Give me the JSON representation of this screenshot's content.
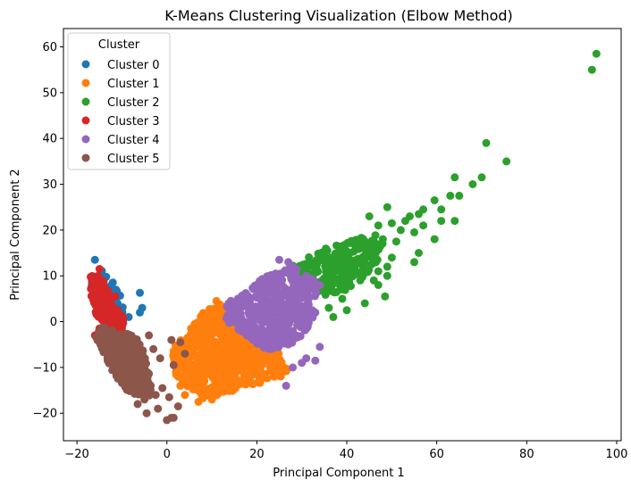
{
  "chart_data": {
    "type": "scatter",
    "title": "K-Means Clustering Visualization (Elbow Method)",
    "xlabel": "Principal Component 1",
    "ylabel": "Principal Component 2",
    "xlim": [
      -23,
      101
    ],
    "ylim": [
      -26,
      64
    ],
    "xticks": [
      -20,
      0,
      20,
      40,
      60,
      80,
      100
    ],
    "yticks": [
      -20,
      -10,
      0,
      10,
      20,
      30,
      40,
      50,
      60
    ],
    "grid": false,
    "legend": {
      "title": "Cluster",
      "location": "top-left"
    },
    "series": [
      {
        "name": "Cluster 0",
        "color": "#1f77b4",
        "cloud": {
          "count": 60,
          "seed": 11,
          "polygon": [
            [
              -17,
              13
            ],
            [
              -13,
              11
            ],
            [
              -10,
              5
            ],
            [
              -8,
              3
            ],
            [
              -11,
              -2
            ],
            [
              -14,
              0
            ],
            [
              -17,
              6
            ]
          ]
        },
        "points": [
          [
            -16,
            13.5
          ],
          [
            -13.5,
            9.8
          ],
          [
            -12.5,
            6.5
          ],
          [
            -11,
            3.8
          ],
          [
            -6,
            6.3
          ],
          [
            -5.5,
            3
          ],
          [
            -6,
            2
          ],
          [
            -8.5,
            1
          ],
          [
            -10,
            -1
          ]
        ]
      },
      {
        "name": "Cluster 1",
        "color": "#ff7f0e",
        "cloud": {
          "count": 650,
          "seed": 22,
          "polygon": [
            [
              4,
              -3
            ],
            [
              8,
              2
            ],
            [
              12,
              4
            ],
            [
              15,
              2
            ],
            [
              19,
              -3
            ],
            [
              25,
              -7
            ],
            [
              27,
              -11
            ],
            [
              24,
              -13
            ],
            [
              18,
              -14
            ],
            [
              12,
              -16
            ],
            [
              8,
              -17
            ],
            [
              2,
              -12
            ],
            [
              1,
              -6
            ]
          ]
        },
        "points": [
          [
            2,
            -11
          ],
          [
            3,
            -14
          ],
          [
            4,
            -16
          ],
          [
            7,
            -17.5
          ],
          [
            10,
            -17
          ],
          [
            12,
            3.5
          ],
          [
            11,
            4.5
          ],
          [
            20,
            -10
          ],
          [
            23,
            -9
          ],
          [
            26,
            -10
          ],
          [
            18,
            -13
          ],
          [
            14,
            -14
          ]
        ]
      },
      {
        "name": "Cluster 2",
        "color": "#2ca02c",
        "cloud": {
          "count": 240,
          "seed": 33,
          "polygon": [
            [
              27,
              12
            ],
            [
              35,
              16
            ],
            [
              42,
              18
            ],
            [
              48,
              20
            ],
            [
              48,
              14
            ],
            [
              44,
              10
            ],
            [
              40,
              7
            ],
            [
              36,
              5
            ],
            [
              31,
              8
            ]
          ]
        },
        "points": [
          [
            95.5,
            58.5
          ],
          [
            94.5,
            55
          ],
          [
            71,
            39
          ],
          [
            75.5,
            35
          ],
          [
            70,
            31.5
          ],
          [
            64,
            31.5
          ],
          [
            68,
            30
          ],
          [
            63,
            27.5
          ],
          [
            65,
            27.5
          ],
          [
            59.5,
            26.5
          ],
          [
            61,
            24.5
          ],
          [
            57,
            24.5
          ],
          [
            56,
            23.5
          ],
          [
            54,
            23
          ],
          [
            49,
            25
          ],
          [
            50,
            21.5
          ],
          [
            53,
            22
          ],
          [
            61,
            22
          ],
          [
            64,
            22
          ],
          [
            57,
            21
          ],
          [
            59.5,
            18
          ],
          [
            55,
            19.5
          ],
          [
            52,
            20
          ],
          [
            45,
            23
          ],
          [
            47,
            21
          ],
          [
            48,
            18
          ],
          [
            45,
            17
          ],
          [
            51,
            17.5
          ],
          [
            56,
            15
          ],
          [
            55,
            13
          ],
          [
            50,
            14
          ],
          [
            49,
            12
          ],
          [
            47,
            11
          ],
          [
            46,
            9
          ],
          [
            49,
            10
          ],
          [
            47,
            8
          ],
          [
            48.5,
            5.5
          ],
          [
            44,
            4
          ],
          [
            43,
            9
          ],
          [
            39,
            5
          ],
          [
            36,
            3
          ],
          [
            40,
            2.5
          ],
          [
            37,
            1
          ],
          [
            39.5,
            12
          ]
        ]
      },
      {
        "name": "Cluster 3",
        "color": "#d62728",
        "cloud": {
          "count": 230,
          "seed": 44,
          "polygon": [
            [
              -17,
              11
            ],
            [
              -14,
              9
            ],
            [
              -12,
              4
            ],
            [
              -9.5,
              1
            ],
            [
              -10,
              -2
            ],
            [
              -13,
              -2
            ],
            [
              -16,
              2
            ],
            [
              -17,
              6
            ]
          ]
        },
        "points": [
          [
            -11.5,
            5.5
          ],
          [
            -15,
            11.5
          ],
          [
            -16,
            -3
          ],
          [
            -15,
            -1.5
          ],
          [
            -13,
            -2.5
          ],
          [
            -10,
            -1.5
          ]
        ]
      },
      {
        "name": "Cluster 4",
        "color": "#9467bd",
        "cloud": {
          "count": 500,
          "seed": 55,
          "polygon": [
            [
              13,
              4
            ],
            [
              17,
              6
            ],
            [
              22,
              10
            ],
            [
              28,
              12
            ],
            [
              33,
              9
            ],
            [
              34,
              4
            ],
            [
              31,
              -2
            ],
            [
              27,
              -6
            ],
            [
              22,
              -6
            ],
            [
              17,
              -3
            ],
            [
              13,
              0
            ]
          ]
        },
        "points": [
          [
            25,
            13.5
          ],
          [
            27,
            13
          ],
          [
            31,
            10
          ],
          [
            34,
            8
          ],
          [
            33,
            2
          ],
          [
            34,
            -5.5
          ],
          [
            33,
            -8.5
          ],
          [
            31,
            -8
          ],
          [
            30,
            -9
          ],
          [
            28,
            -10
          ],
          [
            26.5,
            -14
          ]
        ]
      },
      {
        "name": "Cluster 5",
        "color": "#8c564b",
        "cloud": {
          "count": 360,
          "seed": 66,
          "polygon": [
            [
              -15,
              -1
            ],
            [
              -11,
              -2
            ],
            [
              -7,
              -3
            ],
            [
              -5,
              -6
            ],
            [
              -4,
              -11
            ],
            [
              -3,
              -16
            ],
            [
              -6,
              -17
            ],
            [
              -9,
              -15
            ],
            [
              -12,
              -11
            ],
            [
              -14,
              -7
            ],
            [
              -16,
              -3
            ]
          ]
        },
        "points": [
          [
            -4,
            -3
          ],
          [
            -3,
            -6
          ],
          [
            1,
            -4
          ],
          [
            1.5,
            -9.5
          ],
          [
            -1.5,
            -8
          ],
          [
            0.5,
            -16.5
          ],
          [
            -2,
            -19
          ],
          [
            0,
            -21.5
          ],
          [
            1,
            -21
          ],
          [
            1.5,
            -21
          ],
          [
            -4.5,
            -20
          ],
          [
            -6.5,
            -18
          ],
          [
            -5,
            -17
          ],
          [
            -2.5,
            -16
          ],
          [
            -1,
            -14.5
          ],
          [
            2.5,
            -18.5
          ],
          [
            4,
            -7
          ],
          [
            3,
            -4.5
          ],
          [
            -9,
            -14
          ],
          [
            -11,
            -12
          ]
        ]
      }
    ]
  }
}
